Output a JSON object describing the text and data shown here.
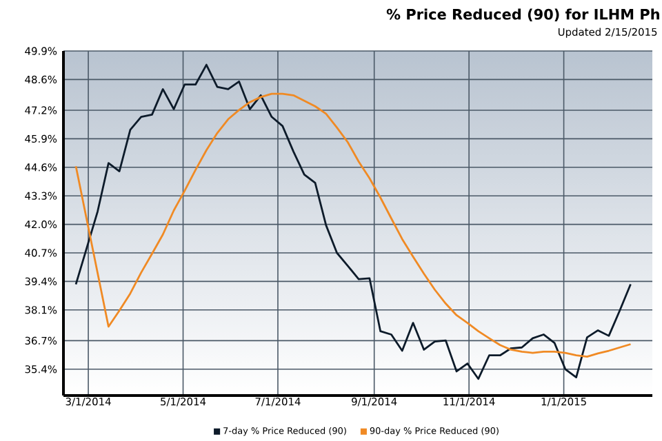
{
  "chart_data": {
    "type": "line",
    "title": "% Price Reduced (90) for ILHM Ph",
    "subtitle": "Updated 2/15/2015",
    "xlim": [
      "2014-02-13",
      "2015-02-27"
    ],
    "ylim": [
      34.2,
      49.9
    ],
    "xticks": [
      {
        "value": "2014-03-01",
        "label": "3/1/2014"
      },
      {
        "value": "2014-05-01",
        "label": "5/1/2014"
      },
      {
        "value": "2014-07-01",
        "label": "7/1/2014"
      },
      {
        "value": "2014-09-01",
        "label": "9/1/2014"
      },
      {
        "value": "2014-11-01",
        "label": "11/1/2014"
      },
      {
        "value": "2015-01-01",
        "label": "1/1/2015"
      }
    ],
    "yticks": [
      {
        "value": 35.4,
        "label": "35.4%"
      },
      {
        "value": 36.7,
        "label": "36.7%"
      },
      {
        "value": 38.1,
        "label": "38.1%"
      },
      {
        "value": 39.4,
        "label": "39.4%"
      },
      {
        "value": 40.7,
        "label": "40.7%"
      },
      {
        "value": 42.0,
        "label": "42.0%"
      },
      {
        "value": 43.3,
        "label": "43.3%"
      },
      {
        "value": 44.6,
        "label": "44.6%"
      },
      {
        "value": 45.9,
        "label": "45.9%"
      },
      {
        "value": 47.2,
        "label": "47.2%"
      },
      {
        "value": 48.6,
        "label": "48.6%"
      },
      {
        "value": 49.9,
        "label": "49.9%"
      }
    ],
    "grid": true,
    "legend": "bottom",
    "marker": "none",
    "line_style": "solid",
    "series": [
      {
        "name": "7-day % Price Reduced (90)",
        "color": "#0d1b2a",
        "x": [
          "2014-02-21",
          "2014-03-07",
          "2014-03-14",
          "2014-03-21",
          "2014-03-28",
          "2014-04-04",
          "2014-04-11",
          "2014-04-18",
          "2014-04-25",
          "2014-05-02",
          "2014-05-09",
          "2014-05-16",
          "2014-05-23",
          "2014-05-30",
          "2014-06-06",
          "2014-06-13",
          "2014-06-20",
          "2014-06-27",
          "2014-07-04",
          "2014-07-11",
          "2014-07-18",
          "2014-07-25",
          "2014-08-01",
          "2014-08-08",
          "2014-08-15",
          "2014-08-22",
          "2014-08-29",
          "2014-09-05",
          "2014-09-12",
          "2014-09-19",
          "2014-09-26",
          "2014-10-03",
          "2014-10-10",
          "2014-10-17",
          "2014-10-24",
          "2014-10-31",
          "2014-11-07",
          "2014-11-14",
          "2014-11-21",
          "2014-11-28",
          "2014-12-05",
          "2014-12-12",
          "2014-12-19",
          "2014-12-26",
          "2015-01-02",
          "2015-01-09",
          "2015-01-16",
          "2015-01-23",
          "2015-01-30",
          "2015-02-06",
          "2015-02-13"
        ],
        "values": [
          39.27,
          42.59,
          44.79,
          44.42,
          46.31,
          46.9,
          47.0,
          48.16,
          47.25,
          48.37,
          48.37,
          49.27,
          48.26,
          48.16,
          48.51,
          47.25,
          47.88,
          46.9,
          46.48,
          45.32,
          44.27,
          43.89,
          41.96,
          40.7,
          40.11,
          39.5,
          39.54,
          37.13,
          36.98,
          36.24,
          37.51,
          36.29,
          36.66,
          36.71,
          35.3,
          35.66,
          34.96,
          36.03,
          36.03,
          36.35,
          36.39,
          36.81,
          36.98,
          36.6,
          35.4,
          35.03,
          36.85,
          37.17,
          36.92,
          38.07,
          39.27
        ]
      },
      {
        "name": "90-day % Price Reduced (90)",
        "color": "#f08a24",
        "x": [
          "2014-02-21",
          "2014-03-14",
          "2014-03-21",
          "2014-03-28",
          "2014-04-04",
          "2014-04-11",
          "2014-04-18",
          "2014-04-25",
          "2014-05-02",
          "2014-05-09",
          "2014-05-16",
          "2014-05-23",
          "2014-05-30",
          "2014-06-06",
          "2014-06-13",
          "2014-06-20",
          "2014-06-27",
          "2014-07-04",
          "2014-07-11",
          "2014-07-18",
          "2014-07-25",
          "2014-08-01",
          "2014-08-08",
          "2014-08-15",
          "2014-08-22",
          "2014-08-29",
          "2014-09-05",
          "2014-09-12",
          "2014-09-19",
          "2014-09-26",
          "2014-10-03",
          "2014-10-10",
          "2014-10-17",
          "2014-10-24",
          "2014-10-31",
          "2014-11-07",
          "2014-11-14",
          "2014-11-21",
          "2014-11-28",
          "2014-12-05",
          "2014-12-12",
          "2014-12-19",
          "2014-12-26",
          "2015-01-02",
          "2015-01-09",
          "2015-01-16",
          "2015-01-23",
          "2015-01-30",
          "2015-02-06",
          "2015-02-13"
        ],
        "values": [
          44.65,
          37.34,
          38.07,
          38.85,
          39.8,
          40.66,
          41.54,
          42.63,
          43.53,
          44.48,
          45.38,
          46.16,
          46.79,
          47.21,
          47.57,
          47.8,
          47.95,
          47.95,
          47.88,
          47.63,
          47.38,
          47.04,
          46.41,
          45.74,
          44.86,
          44.1,
          43.22,
          42.27,
          41.33,
          40.53,
          39.75,
          39.02,
          38.39,
          37.86,
          37.51,
          37.13,
          36.81,
          36.5,
          36.29,
          36.2,
          36.14,
          36.2,
          36.2,
          36.14,
          36.03,
          35.97,
          36.12,
          36.24,
          36.39,
          36.54
        ]
      }
    ]
  }
}
